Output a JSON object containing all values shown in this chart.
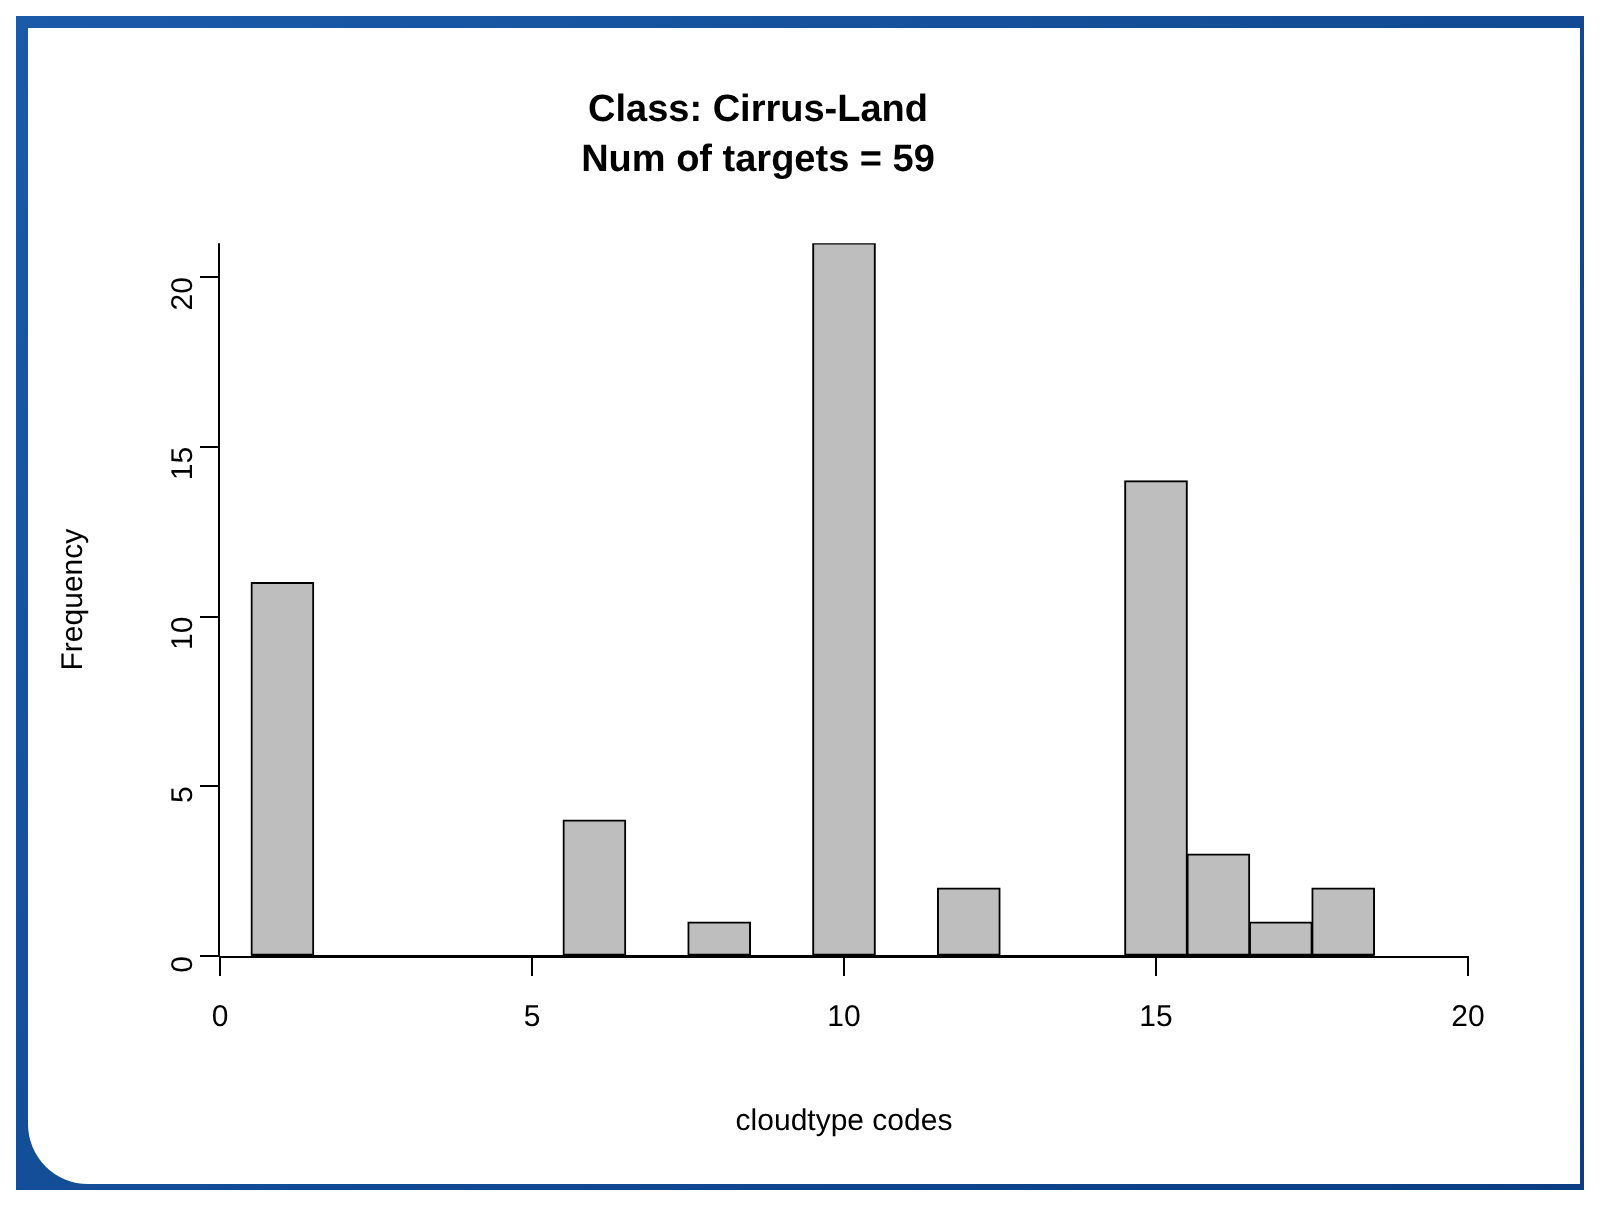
{
  "chart_data": {
    "type": "histogram",
    "title": "Class: Cirrus-Land",
    "subtitle": "Num of targets = 59",
    "xlabel": "cloudtype codes",
    "ylabel": "Frequency",
    "bins": [
      0.5,
      1.5,
      2.5,
      3.5,
      4.5,
      5.5,
      6.5,
      7.5,
      8.5,
      9.5,
      10.5,
      11.5,
      12.5,
      13.5,
      14.5,
      15.5,
      16.5,
      17.5,
      18.5
    ],
    "values": [
      11,
      0,
      0,
      0,
      0,
      4,
      0,
      1,
      0,
      21,
      0,
      2,
      0,
      0,
      14,
      3,
      1,
      2
    ],
    "color": "#bebebe",
    "xlim": [
      0,
      20
    ],
    "xticks": [
      0,
      5,
      10,
      15,
      20
    ],
    "ylim": [
      0,
      21
    ],
    "yticks": [
      0,
      5,
      10,
      15,
      20
    ],
    "grid": false,
    "legend": false
  }
}
